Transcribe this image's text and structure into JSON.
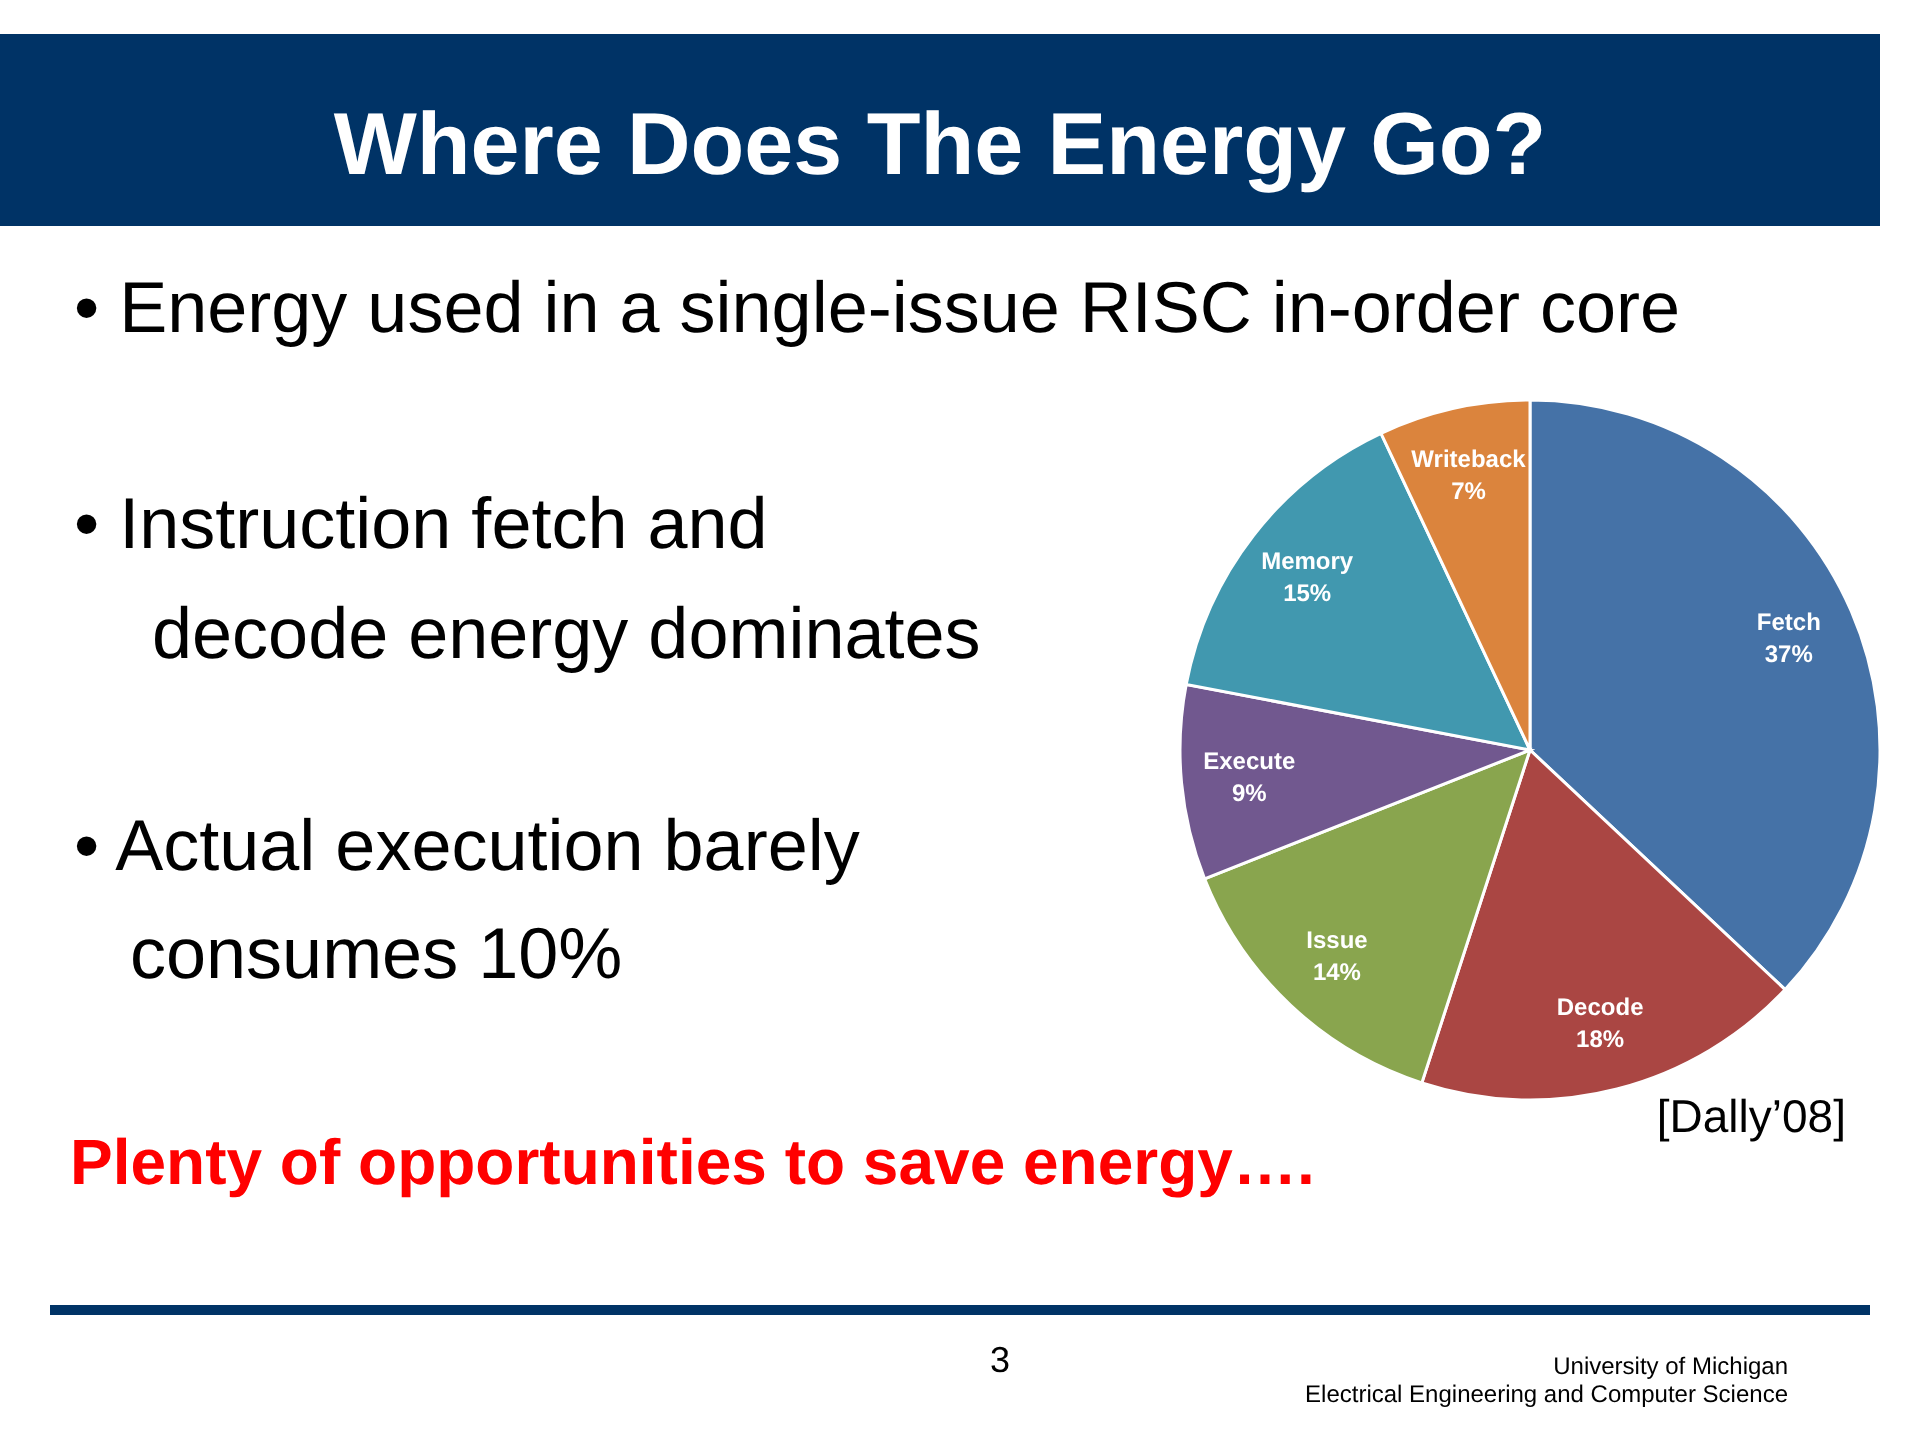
{
  "chart_data": {
    "type": "pie",
    "title": "Where Does The Energy Go?",
    "categories": [
      "Fetch",
      "Decode",
      "Issue",
      "Execute",
      "Memory",
      "Writeback"
    ],
    "values": [
      37,
      18,
      14,
      9,
      15,
      7
    ],
    "colors": [
      "#4572a7",
      "#aa4643",
      "#89a54e",
      "#71588f",
      "#4198af",
      "#db843d"
    ],
    "value_labels": [
      "37%",
      "18%",
      "14%",
      "9%",
      "15%",
      "7%"
    ],
    "annotations": [
      "• Energy used in a single-issue RISC in-order core",
      "• Instruction fetch and",
      "decode energy dominates",
      "• Actual execution barely",
      "consumes 10%",
      "Plenty of opportunities to save energy….",
      "[Dally’08]",
      "3",
      "University of Michigan",
      "Electrical Engineering and Computer Science"
    ]
  }
}
